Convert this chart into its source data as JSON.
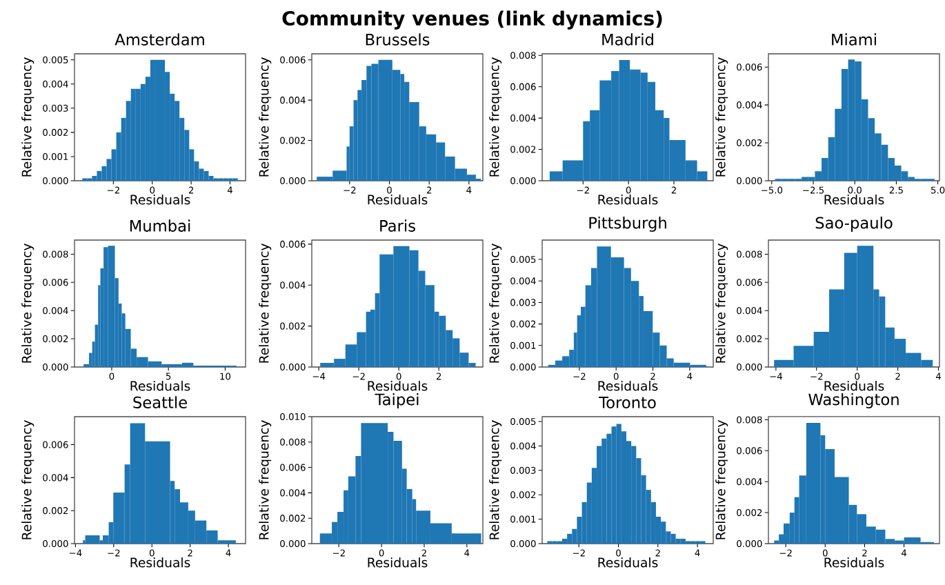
{
  "chart_data": [
    {
      "type": "histogram",
      "title": "Amsterdam",
      "xlabel": "Residuals",
      "ylabel": "Relative frequency",
      "annotations": [
        "Community  venues  (link dynamics)"
      ],
      "color": "#1f77b4",
      "bins": [
        -3.6,
        -3.35,
        -3.1,
        -2.85,
        -2.6,
        -2.35,
        -2.1,
        -1.85,
        -1.6,
        -1.35,
        -1.1,
        -0.85,
        -0.6,
        -0.35,
        -0.1,
        0.15,
        0.4,
        0.65,
        0.9,
        1.15,
        1.4,
        1.65,
        1.9,
        2.15,
        2.4,
        2.65,
        2.9,
        3.15,
        3.4,
        3.65,
        3.9,
        4.15,
        4.4
      ],
      "values": [
        0.0001,
        0.0001,
        0.0002,
        0.0004,
        0.0006,
        0.0009,
        0.0013,
        0.002,
        0.0026,
        0.0033,
        0.0038,
        0.0038,
        0.004,
        0.0043,
        0.005,
        0.005,
        0.005,
        0.0045,
        0.0036,
        0.0033,
        0.0026,
        0.0021,
        0.0013,
        0.0008,
        0.0005,
        0.0004,
        0.0002,
        0.0001,
        0.0001,
        0.0001,
        0.0001,
        0.0001
      ],
      "xlim": [
        -4.0,
        4.8
      ],
      "ylim": [
        0,
        0.00525
      ],
      "xticks": [
        {
          "value": -2,
          "label": "−2"
        },
        0,
        2,
        4
      ],
      "yticks": [
        {
          "value": 0,
          "label": "0.000"
        },
        {
          "value": 0.001,
          "label": "0.001"
        },
        {
          "value": 0.002,
          "label": "0.002"
        },
        {
          "value": 0.003,
          "label": "0.003"
        },
        {
          "value": 0.004,
          "label": "0.004"
        },
        {
          "value": 0.005,
          "label": "0.005"
        }
      ]
    },
    {
      "type": "histogram",
      "title": "Brussels",
      "xlabel": "Residuals",
      "ylabel": "Relative frequency",
      "color": "#1f77b4",
      "bins": [
        -3.65,
        -2.85,
        -2.15,
        -2.0,
        -1.8,
        -1.6,
        -1.4,
        -1.15,
        -0.9,
        -0.55,
        0.15,
        0.55,
        0.75,
        1.0,
        1.5,
        1.85,
        2.35,
        2.8,
        3.3,
        3.9,
        4.35,
        4.6
      ],
      "values": [
        0.0002,
        0.0005,
        0.0017,
        0.0027,
        0.004,
        0.0045,
        0.005,
        0.0057,
        0.0058,
        0.006,
        0.0055,
        0.0053,
        0.0049,
        0.0039,
        0.0027,
        0.0023,
        0.0019,
        0.0012,
        0.0006,
        0.0003,
        0.0001
      ],
      "xlim": [
        -3.9,
        4.7
      ],
      "ylim": [
        0,
        0.0063
      ],
      "xticks": [
        {
          "value": -2,
          "label": "−2"
        },
        0,
        2,
        4
      ],
      "yticks": [
        {
          "value": 0,
          "label": "0.000"
        },
        {
          "value": 0.002,
          "label": "0.002"
        },
        {
          "value": 0.004,
          "label": "0.004"
        },
        {
          "value": 0.006,
          "label": "0.006"
        }
      ]
    },
    {
      "type": "histogram",
      "title": "Madrid",
      "xlabel": "Residuals",
      "ylabel": "Relative frequency",
      "color": "#1f77b4",
      "bins": [
        -3.47,
        -2.9,
        -2.0,
        -1.7,
        -1.27,
        -0.76,
        -0.41,
        0.06,
        0.53,
        0.84,
        1.18,
        1.55,
        1.8,
        2.51,
        3.02,
        3.47
      ],
      "values": [
        0.0006,
        0.0013,
        0.0038,
        0.0045,
        0.0064,
        0.007,
        0.0077,
        0.0071,
        0.0069,
        0.0063,
        0.0045,
        0.004,
        0.0026,
        0.0013,
        0.0006
      ],
      "xlim": [
        -3.8,
        3.73
      ],
      "ylim": [
        0,
        0.0081
      ],
      "xticks": [
        {
          "value": -2,
          "label": "−2"
        },
        0,
        2
      ],
      "yticks": [
        {
          "value": 0,
          "label": "0.000"
        },
        {
          "value": 0.002,
          "label": "0.002"
        },
        {
          "value": 0.004,
          "label": "0.004"
        },
        {
          "value": 0.006,
          "label": "0.006"
        },
        {
          "value": 0.008,
          "label": "0.008"
        }
      ]
    },
    {
      "type": "histogram",
      "title": "Miami",
      "xlabel": "Residuals",
      "ylabel": "Relative frequency",
      "color": "#1f77b4",
      "bins": [
        -4.8,
        -4.4,
        -4.0,
        -3.6,
        -3.2,
        -2.8,
        -2.4,
        -2.0,
        -1.6,
        -1.2,
        -0.8,
        -0.4,
        0,
        0.4,
        0.8,
        1.2,
        1.6,
        2.0,
        2.4,
        2.8,
        3.2,
        3.6,
        4.0,
        4.4,
        4.8
      ],
      "values": [
        0.0001,
        0.0001,
        0.0001,
        0.0001,
        0.0002,
        0.0002,
        0.0005,
        0.0012,
        0.0023,
        0.0038,
        0.0059,
        0.0064,
        0.0063,
        0.0043,
        0.0033,
        0.0025,
        0.0019,
        0.0012,
        0.0008,
        0.0005,
        0.0002,
        0.0001,
        0.0001,
        0.0001
      ],
      "xlim": [
        -5.2,
        5.1
      ],
      "ylim": [
        0,
        0.0067
      ],
      "xticks": [
        {
          "value": -5,
          "label": "−5.0"
        },
        {
          "value": -2.5,
          "label": "−2.5"
        },
        {
          "value": 0,
          "label": "0.0"
        },
        {
          "value": 2.5,
          "label": "2.5"
        },
        {
          "value": 5,
          "label": "5.0"
        }
      ],
      "yticks": [
        {
          "value": 0,
          "label": "0.000"
        },
        {
          "value": 0.002,
          "label": "0.002"
        },
        {
          "value": 0.004,
          "label": "0.004"
        },
        {
          "value": 0.006,
          "label": "0.006"
        }
      ]
    },
    {
      "type": "histogram",
      "title": "Mumbai",
      "xlabel": "Residuals",
      "ylabel": "Relative frequency",
      "color": "#1f77b4",
      "bins": [
        -2.48,
        -2.0,
        -1.72,
        -1.48,
        -1.2,
        -1.0,
        -0.72,
        -0.32,
        0.28,
        0.6,
        0.88,
        1.2,
        1.68,
        2.2,
        3.2,
        4.4,
        6.2,
        7.2,
        11.0
      ],
      "values": [
        0.0002,
        0.001,
        0.0018,
        0.003,
        0.0058,
        0.007,
        0.0085,
        0.0086,
        0.0063,
        0.0045,
        0.0038,
        0.0027,
        0.0013,
        0.0007,
        0.0004,
        0.0002,
        0.0003,
        0.0001
      ],
      "xlim": [
        -3.28,
        11.8
      ],
      "ylim": [
        0,
        0.009
      ],
      "xticks": [
        0,
        5,
        10
      ],
      "yticks": [
        {
          "value": 0,
          "label": "0.000"
        },
        {
          "value": 0.002,
          "label": "0.002"
        },
        {
          "value": 0.004,
          "label": "0.004"
        },
        {
          "value": 0.006,
          "label": "0.006"
        },
        {
          "value": 0.008,
          "label": "0.008"
        }
      ]
    },
    {
      "type": "histogram",
      "title": "Paris",
      "xlabel": "Residuals",
      "ylabel": "Relative frequency",
      "color": "#1f77b4",
      "bins": [
        -3.93,
        -3.24,
        -2.67,
        -2.1,
        -1.64,
        -1.42,
        -1.19,
        -0.96,
        -0.27,
        0.53,
        0.98,
        1.32,
        1.78,
        2.01,
        2.35,
        2.69,
        3.04,
        3.49,
        3.84
      ],
      "values": [
        0.0002,
        0.0004,
        0.0011,
        0.0017,
        0.0027,
        0.0028,
        0.0036,
        0.0055,
        0.0059,
        0.0057,
        0.0047,
        0.004,
        0.0027,
        0.0025,
        0.0018,
        0.0014,
        0.0007,
        0.0002
      ],
      "xlim": [
        -4.35,
        4.2
      ],
      "ylim": [
        0,
        0.0062
      ],
      "xticks": [
        {
          "value": -4,
          "label": "−4"
        },
        {
          "value": -2,
          "label": "−2"
        },
        0,
        2
      ],
      "yticks": [
        {
          "value": 0,
          "label": "0.000"
        },
        {
          "value": 0.002,
          "label": "0.002"
        },
        {
          "value": 0.004,
          "label": "0.004"
        },
        {
          "value": 0.006,
          "label": "0.006"
        }
      ]
    },
    {
      "type": "histogram",
      "title": "Pittsburgh",
      "xlabel": "Residuals",
      "ylabel": "Relative frequency",
      "color": "#1f77b4",
      "bins": [
        -3.69,
        -3.31,
        -2.93,
        -2.55,
        -2.3,
        -2.12,
        -1.92,
        -1.67,
        -1.36,
        -1.04,
        -0.28,
        0.43,
        0.81,
        1.24,
        1.49,
        1.99,
        2.37,
        2.75,
        3.13,
        4.02,
        4.9
      ],
      "values": [
        0.0001,
        0.0003,
        0.0005,
        0.0008,
        0.0016,
        0.0024,
        0.0028,
        0.0038,
        0.0046,
        0.0056,
        0.0051,
        0.0046,
        0.004,
        0.0033,
        0.0026,
        0.0016,
        0.001,
        0.0004,
        0.0002,
        0.0001
      ],
      "xlim": [
        -4.02,
        5.28
      ],
      "ylim": [
        0,
        0.0059
      ],
      "xticks": [
        {
          "value": -2,
          "label": "−2"
        },
        0,
        2,
        4
      ],
      "yticks": [
        {
          "value": 0,
          "label": "0.000"
        },
        {
          "value": 0.001,
          "label": "0.001"
        },
        {
          "value": 0.002,
          "label": "0.002"
        },
        {
          "value": 0.003,
          "label": "0.003"
        },
        {
          "value": 0.004,
          "label": "0.004"
        },
        {
          "value": 0.005,
          "label": "0.005"
        }
      ]
    },
    {
      "type": "histogram",
      "title": "Sao-paulo",
      "xlabel": "Residuals",
      "ylabel": "Relative frequency",
      "color": "#1f77b4",
      "bins": [
        -4.09,
        -3.13,
        -2.14,
        -1.38,
        -0.64,
        0,
        0.8,
        1.08,
        1.38,
        1.84,
        2.39,
        3.15,
        3.72
      ],
      "values": [
        0.0005,
        0.0015,
        0.0025,
        0.0055,
        0.0081,
        0.0086,
        0.0055,
        0.005,
        0.0028,
        0.002,
        0.001,
        0.0005
      ],
      "xlim": [
        -4.37,
        4.05
      ],
      "ylim": [
        0,
        0.009
      ],
      "xticks": [
        {
          "value": -4,
          "label": "−4"
        },
        {
          "value": -2,
          "label": "−2"
        },
        0,
        2,
        4
      ],
      "yticks": [
        {
          "value": 0,
          "label": "0.000"
        },
        {
          "value": 0.002,
          "label": "0.002"
        },
        {
          "value": 0.004,
          "label": "0.004"
        },
        {
          "value": 0.006,
          "label": "0.006"
        },
        {
          "value": 0.008,
          "label": "0.008"
        }
      ]
    },
    {
      "type": "histogram",
      "title": "Seattle",
      "xlabel": "Residuals",
      "ylabel": "Relative frequency",
      "color": "#1f77b4",
      "bins": [
        -3.61,
        -3.49,
        -2.73,
        -2.57,
        -2.26,
        -2.02,
        -1.43,
        -1.14,
        -0.36,
        0.95,
        1.19,
        1.47,
        1.9,
        2.26,
        2.85,
        3.44,
        4.39
      ],
      "values": [
        0.0002,
        0.0005,
        0.0002,
        0.0005,
        0.0013,
        0.0031,
        0.0048,
        0.0073,
        0.0062,
        0.0038,
        0.0033,
        0.0025,
        0.002,
        0.0014,
        0.0008,
        0.0002
      ],
      "xlim": [
        -4.05,
        4.9
      ],
      "ylim": [
        0,
        0.0077
      ],
      "xticks": [
        {
          "value": -4,
          "label": "−4"
        },
        {
          "value": -2,
          "label": "−2"
        },
        0,
        2,
        4
      ],
      "yticks": [
        {
          "value": 0,
          "label": "0.000"
        },
        {
          "value": 0.002,
          "label": "0.002"
        },
        {
          "value": 0.004,
          "label": "0.004"
        },
        {
          "value": 0.006,
          "label": "0.006"
        }
      ]
    },
    {
      "type": "histogram",
      "title": "Taipei",
      "xlabel": "Residuals",
      "ylabel": "Relative frequency",
      "color": "#1f77b4",
      "bins": [
        -2.89,
        -2.33,
        -2.07,
        -1.78,
        -1.56,
        -1.22,
        -0.96,
        0.29,
        0.56,
        0.96,
        1.18,
        1.44,
        1.62,
        2.29,
        3.29,
        4.67
      ],
      "values": [
        0.0008,
        0.0017,
        0.0025,
        0.0042,
        0.0053,
        0.0069,
        0.0095,
        0.0088,
        0.0081,
        0.0059,
        0.0043,
        0.0035,
        0.0026,
        0.0016,
        0.0008
      ],
      "xlim": [
        -3.27,
        4.75
      ],
      "ylim": [
        0,
        0.01
      ],
      "xticks": [
        {
          "value": -2,
          "label": "−2"
        },
        0,
        2,
        4
      ],
      "yticks": [
        {
          "value": 0,
          "label": "0.000"
        },
        {
          "value": 0.002,
          "label": "0.002"
        },
        {
          "value": 0.004,
          "label": "0.004"
        },
        {
          "value": 0.006,
          "label": "0.006"
        },
        {
          "value": 0.008,
          "label": "0.008"
        },
        {
          "value": 0.01,
          "label": "0.010"
        }
      ]
    },
    {
      "type": "histogram",
      "title": "Toronto",
      "xlabel": "Residuals",
      "ylabel": "Relative frequency",
      "color": "#1f77b4",
      "bins": [
        -3.6,
        -3.35,
        -3.1,
        -2.85,
        -2.6,
        -2.35,
        -2.1,
        -1.85,
        -1.6,
        -1.35,
        -1.1,
        -0.85,
        -0.6,
        -0.35,
        -0.1,
        0.15,
        0.4,
        0.65,
        0.9,
        1.15,
        1.4,
        1.65,
        1.9,
        2.15,
        2.4,
        2.65,
        2.9,
        3.15,
        3.4,
        3.65,
        3.9,
        4.15,
        4.4
      ],
      "values": [
        0.0001,
        0.0001,
        0.0001,
        0.0002,
        0.0004,
        0.0006,
        0.0011,
        0.0017,
        0.0025,
        0.0031,
        0.004,
        0.0043,
        0.0045,
        0.0048,
        0.0049,
        0.0046,
        0.0042,
        0.004,
        0.0035,
        0.0028,
        0.0022,
        0.0017,
        0.0011,
        0.0009,
        0.0005,
        0.0004,
        0.0002,
        0.0002,
        0.0001,
        0.0001,
        0.0001,
        0.0001
      ],
      "xlim": [
        -3.86,
        4.8
      ],
      "ylim": [
        0,
        0.0052
      ],
      "xticks": [
        {
          "value": -2,
          "label": "−2"
        },
        0,
        2,
        4
      ],
      "yticks": [
        {
          "value": 0,
          "label": "0.000"
        },
        {
          "value": 0.001,
          "label": "0.001"
        },
        {
          "value": 0.002,
          "label": "0.002"
        },
        {
          "value": 0.003,
          "label": "0.003"
        },
        {
          "value": 0.004,
          "label": "0.004"
        },
        {
          "value": 0.005,
          "label": "0.005"
        }
      ]
    },
    {
      "type": "histogram",
      "title": "Washington",
      "xlabel": "Residuals",
      "ylabel": "Relative frequency",
      "color": "#1f77b4",
      "bins": [
        -2.59,
        -2.35,
        -2.11,
        -1.8,
        -1.56,
        -1.32,
        -0.96,
        -0.24,
        0,
        0.48,
        1.2,
        1.61,
        2.09,
        2.57,
        3.05,
        3.53,
        4.0,
        4.84,
        5.52
      ],
      "values": [
        0.0002,
        0.0006,
        0.0013,
        0.002,
        0.003,
        0.0044,
        0.0078,
        0.007,
        0.0061,
        0.0043,
        0.0025,
        0.0019,
        0.0011,
        0.0009,
        0.0003,
        0.0002,
        0.0004,
        0.0001
      ],
      "xlim": [
        -2.88,
        5.8
      ],
      "ylim": [
        0,
        0.0082
      ],
      "xticks": [
        {
          "value": -2,
          "label": "−2"
        },
        0,
        2,
        4
      ],
      "yticks": [
        {
          "value": 0,
          "label": "0.000"
        },
        {
          "value": 0.002,
          "label": "0.002"
        },
        {
          "value": 0.004,
          "label": "0.004"
        },
        {
          "value": 0.006,
          "label": "0.006"
        },
        {
          "value": 0.008,
          "label": "0.008"
        }
      ]
    }
  ]
}
